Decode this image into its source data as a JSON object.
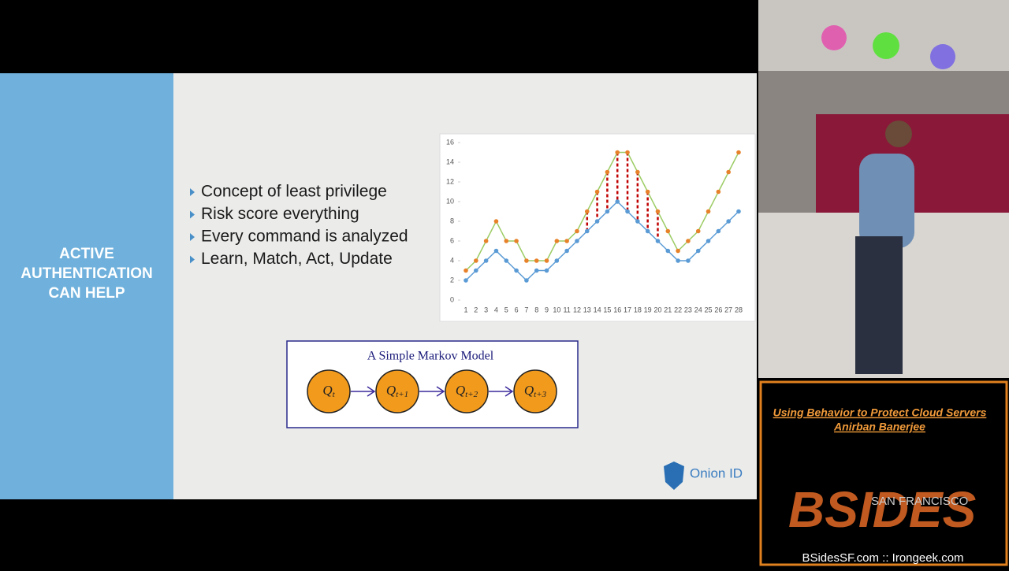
{
  "slide": {
    "sidebar_title": "ACTIVE AUTHENTICATION CAN HELP",
    "bullets": [
      "Concept of least privilege",
      "Risk score everything",
      "Every command is analyzed",
      "Learn, Match, Act, Update"
    ],
    "markov": {
      "title": "A Simple Markov Model",
      "nodes": [
        {
          "label": "Q",
          "subscript": "t"
        },
        {
          "label": "Q",
          "subscript": "t+1"
        },
        {
          "label": "Q",
          "subscript": "t+2"
        },
        {
          "label": "Q",
          "subscript": "t+3"
        }
      ]
    },
    "logo": "Onion ID"
  },
  "chart_data": {
    "type": "line",
    "categories": [
      1,
      2,
      3,
      4,
      5,
      6,
      7,
      8,
      9,
      10,
      11,
      12,
      13,
      14,
      15,
      16,
      17,
      18,
      19,
      20,
      21,
      22,
      23,
      24,
      25,
      26,
      27,
      28
    ],
    "series": [
      {
        "color": "#9ccc65",
        "marker_color": "#e8822a",
        "values": [
          3,
          4,
          6,
          8,
          6,
          6,
          4,
          4,
          4,
          6,
          6,
          7,
          9,
          11,
          13,
          15,
          15,
          13,
          11,
          9,
          7,
          5,
          6,
          7,
          9,
          11,
          13,
          15
        ]
      },
      {
        "color": "#5b9bd5",
        "marker_color": "#5b9bd5",
        "values": [
          2,
          3,
          4,
          5,
          4,
          3,
          2,
          3,
          3,
          4,
          5,
          6,
          7,
          8,
          9,
          10,
          9,
          8,
          7,
          6,
          5,
          4,
          4,
          5,
          6,
          7,
          8,
          9
        ]
      }
    ],
    "difference_lines": {
      "color": "#c00000",
      "from_x": 13,
      "to_x": 20
    },
    "ylim": [
      0,
      16
    ],
    "yticks": [
      0,
      2,
      4,
      6,
      8,
      10,
      12,
      14,
      16
    ]
  },
  "talk": {
    "title": "Using Behavior to Protect Cloud Servers",
    "speaker": "Anirban Banerjee",
    "logo_main": "BSIDES",
    "logo_city": "SAN FRANCISCO",
    "footer": "BSidesSF.com :: Irongeek.com"
  }
}
